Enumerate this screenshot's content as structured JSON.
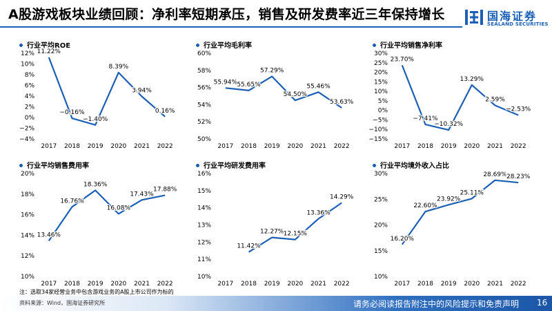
{
  "header": {
    "title": "A股游戏板块业绩回顾：净利率短期承压，销售及研发费率近三年保持增长",
    "logo_cn": "国海证券",
    "logo_en": "SEALAND SECURITIES"
  },
  "colors": {
    "brand": "#1b5fb6",
    "line": "#1b5fb6"
  },
  "chart_data": [
    {
      "type": "line",
      "title": "行业平均ROE",
      "x": [
        "2017",
        "2018",
        "2019",
        "2020",
        "2021",
        "2022"
      ],
      "values": [
        11.22,
        -0.16,
        -1.4,
        8.39,
        3.94,
        0.16
      ],
      "labels": [
        "11.22%",
        "−0.16%",
        "−1.40%",
        "8.39%",
        "3.94%",
        "0.16%"
      ],
      "ylim": [
        -4,
        12
      ],
      "yticks": [
        -4,
        -2,
        0,
        2,
        4,
        6,
        8,
        10,
        12
      ],
      "ytick_labels": [
        "−4%",
        "−2%",
        "0%",
        "2%",
        "4%",
        "6%",
        "8%",
        "10%",
        "12%"
      ],
      "grid": false
    },
    {
      "type": "line",
      "title": "行业平均毛利率",
      "x": [
        "2017",
        "2018",
        "2019",
        "2020",
        "2021",
        "2022"
      ],
      "values": [
        55.94,
        55.65,
        57.29,
        54.5,
        55.46,
        53.63
      ],
      "labels": [
        "55.94%",
        "55.65%",
        "57.29%",
        "54.50%",
        "55.46%",
        "53.63%"
      ],
      "ylim": [
        50,
        60
      ],
      "yticks": [
        50,
        52,
        54,
        56,
        58,
        60
      ],
      "ytick_labels": [
        "50%",
        "52%",
        "54%",
        "56%",
        "58%",
        "60%"
      ],
      "grid": false
    },
    {
      "type": "line",
      "title": "行业平均销售净利率",
      "x": [
        "2017",
        "2018",
        "2019",
        "2020",
        "2021",
        "2022"
      ],
      "values": [
        23.7,
        -7.41,
        -10.32,
        13.29,
        2.59,
        -2.53
      ],
      "labels": [
        "23.70%",
        "−7.41%",
        "−10.32%",
        "13.29%",
        "2.59%",
        "−2.53%"
      ],
      "ylim": [
        -15,
        30
      ],
      "yticks": [
        -15,
        -10,
        -5,
        0,
        5,
        10,
        15,
        20,
        25,
        30
      ],
      "ytick_labels": [
        "−15%",
        "−10%",
        "−5%",
        "0%",
        "5%",
        "10%",
        "15%",
        "20%",
        "25%",
        "30%"
      ],
      "grid": false
    },
    {
      "type": "line",
      "title": "行业平均销售费用率",
      "x": [
        "2017",
        "2018",
        "2019",
        "2020",
        "2021",
        "2022"
      ],
      "values": [
        13.46,
        16.76,
        18.36,
        16.08,
        17.43,
        17.88
      ],
      "labels": [
        "13.46%",
        "16.76%",
        "18.36%",
        "16.08%",
        "17.43%",
        "17.88%"
      ],
      "ylim": [
        10,
        20
      ],
      "yticks": [
        10,
        12,
        14,
        16,
        18,
        20
      ],
      "ytick_labels": [
        "10%",
        "12%",
        "14%",
        "16%",
        "18%",
        "20%"
      ],
      "grid": false
    },
    {
      "type": "line",
      "title": "行业平均研发费用率",
      "x": [
        "2017",
        "2018",
        "2019",
        "2020",
        "2021",
        "2022"
      ],
      "values": [
        null,
        11.42,
        12.27,
        12.15,
        13.36,
        14.29
      ],
      "labels": [
        "",
        "11.42%",
        "12.27%",
        "12.15%",
        "13.36%",
        "14.29%"
      ],
      "ylim": [
        10,
        16
      ],
      "yticks": [
        10,
        11,
        12,
        13,
        14,
        15,
        16
      ],
      "ytick_labels": [
        "10%",
        "11%",
        "12%",
        "13%",
        "14%",
        "15%",
        "16%"
      ],
      "grid": false
    },
    {
      "type": "line",
      "title": "行业平均境外收入占比",
      "x": [
        "2017",
        "2018",
        "2019",
        "2020",
        "2021",
        "2022"
      ],
      "values": [
        16.2,
        22.6,
        23.92,
        25.11,
        28.69,
        28.23
      ],
      "labels": [
        "16.20%",
        "22.60%",
        "23.92%",
        "25.11%",
        "28.69%",
        "28.23%"
      ],
      "ylim": [
        10,
        30
      ],
      "yticks": [
        10,
        15,
        20,
        25,
        30
      ],
      "ytick_labels": [
        "10%",
        "15%",
        "20%",
        "25%",
        "30%"
      ],
      "grid": false
    }
  ],
  "footer": {
    "note": "注：选取34家经营业务中包含游戏业务的A股上市公司作为标的",
    "source": "资料来源：Wind，国海证券研究所",
    "disclaimer": "请务必阅读报告附注中的风险提示和免责声明",
    "page": "16"
  }
}
